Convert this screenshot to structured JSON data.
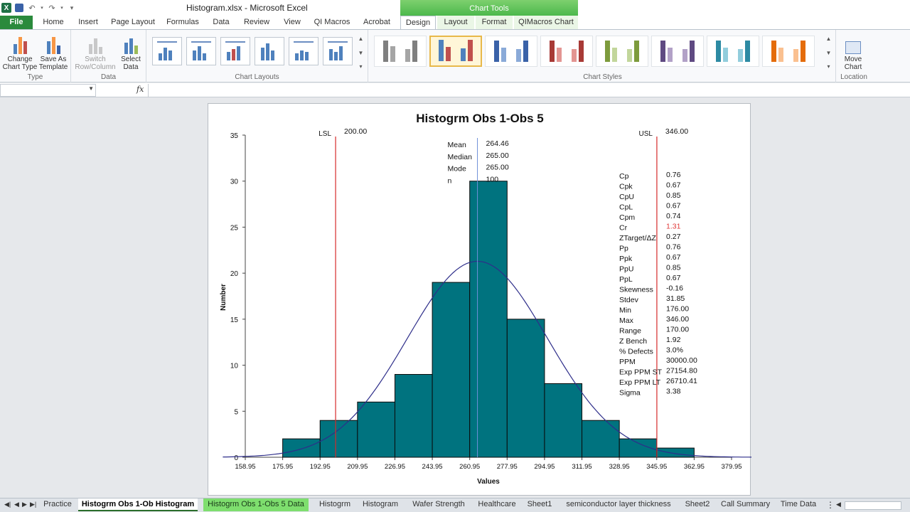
{
  "titlebar": {
    "title": "Histogram.xlsx - Microsoft Excel",
    "chart_tools": "Chart Tools",
    "icons": [
      "excel-logo-icon",
      "save-icon",
      "undo-icon",
      "redo-icon",
      "customize-qat-icon"
    ]
  },
  "tabs": {
    "file": "File",
    "items": [
      "Home",
      "Insert",
      "Page Layout",
      "Formulas",
      "Data",
      "Review",
      "View",
      "QI Macros",
      "Acrobat",
      "Design",
      "Layout",
      "Format",
      "QIMacros Chart"
    ],
    "selected": "Design"
  },
  "ribbon": {
    "type_group": {
      "label": "Type",
      "change_chart_type": "Change Chart Type",
      "save_as_template": "Save As Template"
    },
    "data_group": {
      "label": "Data",
      "switch_row_column": "Switch Row/Column",
      "select_data": "Select Data"
    },
    "layouts_group": {
      "label": "Chart Layouts"
    },
    "styles_group": {
      "label": "Chart Styles",
      "colors": [
        "#7f7f7f",
        "#4f81bd",
        "#4f81bd",
        "#c0504d",
        "#9bbb59",
        "#8064a2",
        "#4bacc6",
        "#f79646"
      ]
    },
    "location_group": {
      "label": "Location",
      "move_chart": "Move Chart"
    }
  },
  "formula_bar": {
    "name_box": "",
    "fx": "fx",
    "formula": ""
  },
  "chart_data": {
    "type": "bar",
    "title": "Histogrm Obs 1-Obs 5",
    "xlabel": "Values",
    "ylabel": "Number",
    "x_ticks": [
      "158.95",
      "175.95",
      "192.95",
      "209.95",
      "226.95",
      "243.95",
      "260.95",
      "277.95",
      "294.95",
      "311.95",
      "328.95",
      "345.95",
      "362.95",
      "379.95"
    ],
    "y_ticks": [
      "0",
      "5",
      "10",
      "15",
      "20",
      "25",
      "30",
      "35"
    ],
    "ylim": [
      0,
      35
    ],
    "xlim": [
      158.95,
      379.95
    ],
    "bins": [
      {
        "start": 175.95,
        "end": 192.95,
        "count": 2
      },
      {
        "start": 192.95,
        "end": 209.95,
        "count": 4
      },
      {
        "start": 209.95,
        "end": 226.95,
        "count": 6
      },
      {
        "start": 226.95,
        "end": 243.95,
        "count": 9
      },
      {
        "start": 243.95,
        "end": 260.95,
        "count": 19
      },
      {
        "start": 260.95,
        "end": 277.95,
        "count": 30
      },
      {
        "start": 277.95,
        "end": 294.95,
        "count": 15
      },
      {
        "start": 294.95,
        "end": 311.95,
        "count": 8
      },
      {
        "start": 311.95,
        "end": 328.95,
        "count": 4
      },
      {
        "start": 328.95,
        "end": 345.95,
        "count": 2
      },
      {
        "start": 345.95,
        "end": 362.95,
        "count": 1
      }
    ],
    "bar_color": "#00737f",
    "curve_color": "#2e2e8a",
    "lsl": {
      "label": "LSL",
      "value": 200.0,
      "text": "200.00"
    },
    "usl": {
      "label": "USL",
      "value": 346.0,
      "text": "346.00"
    },
    "mean_value": 264.46,
    "center_stats": [
      {
        "label": "Mean",
        "value": "264.46"
      },
      {
        "label": "Median",
        "value": "265.00"
      },
      {
        "label": "Mode",
        "value": "265.00"
      },
      {
        "label": "n",
        "value": "100"
      }
    ],
    "stats": [
      {
        "label": "Cp",
        "value": "0.76"
      },
      {
        "label": "Cpk",
        "value": "0.67"
      },
      {
        "label": "CpU",
        "value": "0.85"
      },
      {
        "label": "CpL",
        "value": "0.67"
      },
      {
        "label": "Cpm",
        "value": "0.74"
      },
      {
        "label": "Cr",
        "value": "1.31",
        "highlight": true
      },
      {
        "label": "ZTarget/ΔZ",
        "value": "0.27"
      },
      {
        "label": "Pp",
        "value": "0.76"
      },
      {
        "label": "Ppk",
        "value": "0.67"
      },
      {
        "label": "PpU",
        "value": "0.85"
      },
      {
        "label": "PpL",
        "value": "0.67"
      },
      {
        "label": "Skewness",
        "value": "-0.16"
      },
      {
        "label": "Stdev",
        "value": "31.85"
      },
      {
        "label": "Min",
        "value": "176.00"
      },
      {
        "label": "Max",
        "value": "346.00"
      },
      {
        "label": "Range",
        "value": "170.00"
      },
      {
        "label": "Z Bench",
        "value": "1.92"
      },
      {
        "label": "% Defects",
        "value": "3.0%"
      },
      {
        "label": "PPM",
        "value": "30000.00"
      },
      {
        "label": "Exp PPM ST",
        "value": "27154.80"
      },
      {
        "label": "Exp PPM LT",
        "value": "26710.41"
      },
      {
        "label": "Sigma",
        "value": "3.38"
      }
    ],
    "highlight_color": "#e03a3a",
    "spec_color": "#d62a2a"
  },
  "sheets": {
    "tabs": [
      "Practice",
      "Histogrm Obs 1-Ob Histogram",
      "Histogrm Obs 1-Obs 5 Data",
      "Histogrm",
      "Histogram",
      "Wafer Strength",
      "Healthcare",
      "Sheet1",
      "semiconductor layer thickness",
      "Sheet2",
      "Call Summary",
      "Time Data"
    ],
    "active": "Histogrm Obs 1-Ob Histogram",
    "highlighted": "Histogrm Obs 1-Obs 5 Data"
  }
}
